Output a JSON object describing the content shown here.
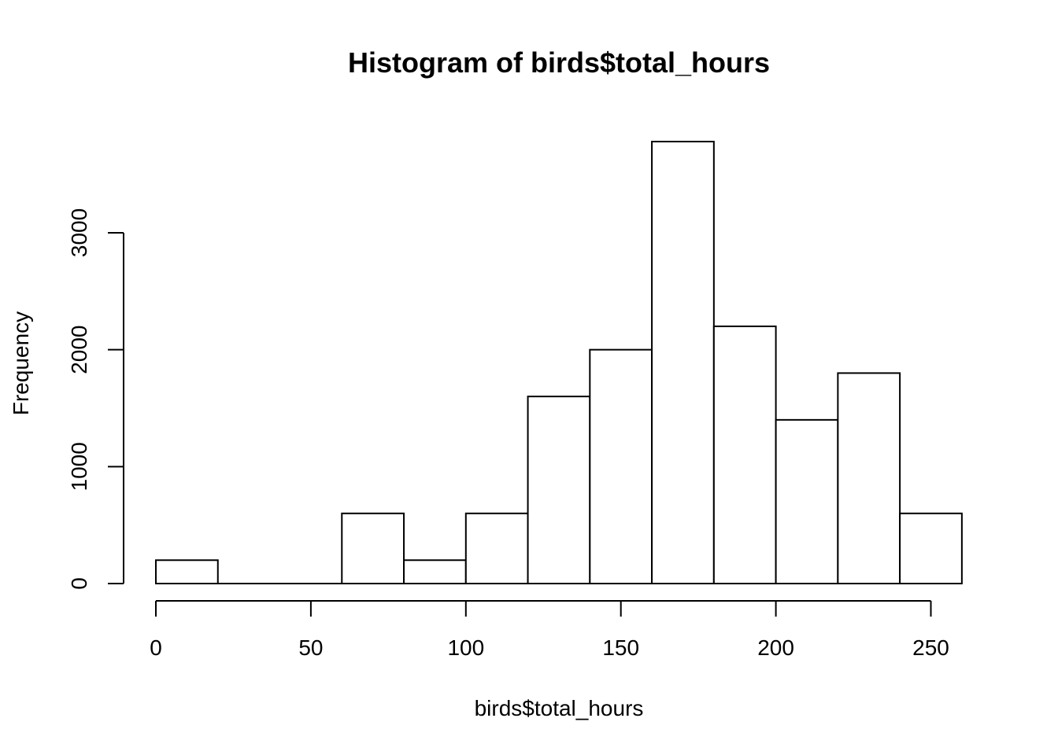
{
  "chart_data": {
    "type": "bar",
    "subtype": "histogram",
    "title": "Histogram of birds$total_hours",
    "xlabel": "birds$total_hours",
    "ylabel": "Frequency",
    "bins": [
      {
        "from": 0,
        "to": 20,
        "count": 200
      },
      {
        "from": 20,
        "to": 40,
        "count": 0
      },
      {
        "from": 40,
        "to": 60,
        "count": 0
      },
      {
        "from": 60,
        "to": 80,
        "count": 600
      },
      {
        "from": 80,
        "to": 100,
        "count": 200
      },
      {
        "from": 100,
        "to": 120,
        "count": 600
      },
      {
        "from": 120,
        "to": 140,
        "count": 1600
      },
      {
        "from": 140,
        "to": 160,
        "count": 2000
      },
      {
        "from": 160,
        "to": 180,
        "count": 3780
      },
      {
        "from": 180,
        "to": 200,
        "count": 2200
      },
      {
        "from": 200,
        "to": 220,
        "count": 1400
      },
      {
        "from": 220,
        "to": 240,
        "count": 1800
      },
      {
        "from": 240,
        "to": 260,
        "count": 600
      }
    ],
    "x_ticks": [
      "0",
      "50",
      "100",
      "150",
      "200",
      "250"
    ],
    "y_ticks": [
      "0",
      "1000",
      "2000",
      "3000"
    ],
    "xlim": [
      0,
      260
    ],
    "ylim": [
      0,
      3780
    ],
    "grid": false,
    "colors": {
      "bar_fill": "#ffffff",
      "bar_stroke": "#000000"
    }
  }
}
